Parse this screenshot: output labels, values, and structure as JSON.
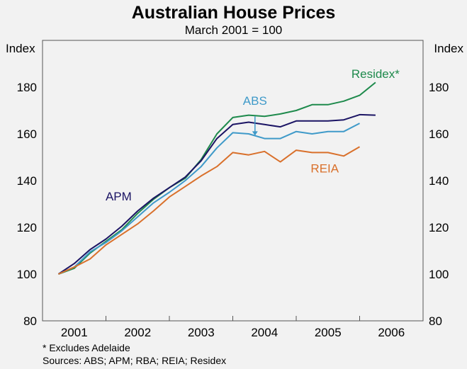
{
  "chart_data": {
    "type": "line",
    "title": "Australian House Prices",
    "subtitle": "March 2001 = 100",
    "ylabel_left": "Index",
    "ylabel_right": "Index",
    "ylim": [
      80,
      200
    ],
    "yticks": [
      80,
      100,
      120,
      140,
      160,
      180
    ],
    "xlim": [
      2000.75,
      2006.75
    ],
    "year_labels": [
      "2001",
      "2002",
      "2003",
      "2004",
      "2005",
      "2006"
    ],
    "year_label_positions": [
      2001.25,
      2002.25,
      2003.25,
      2004.25,
      2005.25,
      2006.25
    ],
    "year_boundaries": [
      2001.75,
      2002.75,
      2003.75,
      2004.75,
      2005.75
    ],
    "grid": true,
    "series": [
      {
        "name": "Residex*",
        "color": "#1e8a4c",
        "label_value": [
          2006.0,
          184
        ],
        "x": [
          2001.0,
          2001.25,
          2001.5,
          2001.75,
          2002.0,
          2002.25,
          2002.5,
          2002.75,
          2003.0,
          2003.25,
          2003.5,
          2003.75,
          2004.0,
          2004.25,
          2004.5,
          2004.75,
          2005.0,
          2005.25,
          2005.5,
          2005.75,
          2006.0
        ],
        "values": [
          100,
          102.5,
          109,
          114,
          119,
          126,
          132,
          137,
          141,
          149,
          160,
          167,
          168,
          167.5,
          168.5,
          170,
          172.5,
          172.5,
          174,
          176.5,
          182
        ]
      },
      {
        "name": "APM",
        "color": "#1b1464",
        "label_value": [
          2001.95,
          131.5
        ],
        "x": [
          2001.0,
          2001.25,
          2001.5,
          2001.75,
          2002.0,
          2002.25,
          2002.5,
          2002.75,
          2003.0,
          2003.25,
          2003.5,
          2003.75,
          2004.0,
          2004.25,
          2004.5,
          2004.75,
          2005.0,
          2005.25,
          2005.5,
          2005.75,
          2006.0
        ],
        "values": [
          100,
          104.5,
          110.5,
          115,
          120.5,
          127,
          132.5,
          137,
          141.5,
          148.5,
          158,
          164,
          165,
          164,
          163,
          165.5,
          165.5,
          165.5,
          166,
          168.2,
          168
        ]
      },
      {
        "name": "ABS",
        "color": "#3f9ac9",
        "label_value": [
          2004.1,
          172.5
        ],
        "x": [
          2001.0,
          2001.25,
          2001.5,
          2001.75,
          2002.0,
          2002.25,
          2002.5,
          2002.75,
          2003.0,
          2003.25,
          2003.5,
          2003.75,
          2004.0,
          2004.25,
          2004.5,
          2004.75,
          2005.0,
          2005.25,
          2005.5,
          2005.75
        ],
        "values": [
          100,
          103,
          109.5,
          113.5,
          118.5,
          124.5,
          130.5,
          135,
          140,
          146,
          154,
          160.5,
          160,
          158,
          158,
          161,
          160,
          161,
          161,
          164.5
        ]
      },
      {
        "name": "REIA",
        "color": "#d9702b",
        "label_value": [
          2005.2,
          143.5
        ],
        "x": [
          2001.0,
          2001.25,
          2001.5,
          2001.75,
          2002.0,
          2002.25,
          2002.5,
          2002.75,
          2003.0,
          2003.25,
          2003.5,
          2003.75,
          2004.0,
          2004.25,
          2004.5,
          2004.75,
          2005.0,
          2005.25,
          2005.5,
          2005.75
        ],
        "values": [
          100,
          103,
          106.5,
          112.5,
          117,
          121.5,
          127,
          133,
          137.5,
          142,
          146,
          152,
          151,
          152.5,
          148,
          153,
          152,
          152,
          150.5,
          154.5
        ]
      }
    ],
    "annotation_arrow": {
      "series": "ABS",
      "from": [
        2004.1,
        167.5
      ],
      "to": [
        2004.1,
        160.5
      ]
    },
    "footnotes": [
      "*   Excludes Adelaide",
      "Sources: ABS; APM; RBA; REIA; Residex"
    ]
  }
}
